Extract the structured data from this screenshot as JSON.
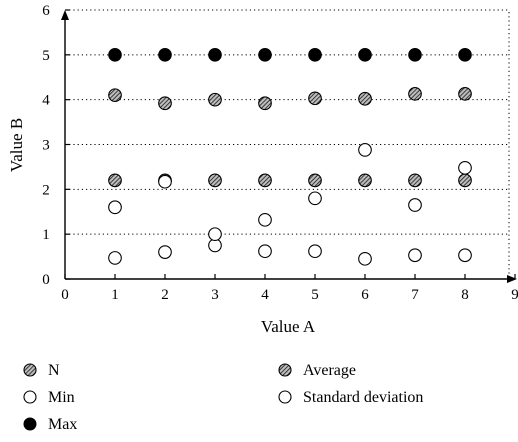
{
  "chart_data": {
    "type": "scatter",
    "xlabel": "Value A",
    "ylabel": "Value B",
    "xlim": [
      0,
      9
    ],
    "ylim": [
      0,
      6
    ],
    "xticks": [
      "0",
      "1",
      "2",
      "3",
      "4",
      "5",
      "6",
      "7",
      "8",
      "9"
    ],
    "yticks": [
      "0",
      "1",
      "2",
      "3",
      "4",
      "5",
      "6"
    ],
    "grid": "dotted horizontal",
    "legend_position": "bottom",
    "series": [
      {
        "name": "N",
        "marker": "hatched",
        "points": [
          [
            1,
            2.2
          ],
          [
            2,
            2.2
          ],
          [
            3,
            2.2
          ],
          [
            4,
            2.2
          ],
          [
            5,
            2.2
          ],
          [
            6,
            2.2
          ],
          [
            7,
            2.2
          ],
          [
            8,
            2.2
          ]
        ]
      },
      {
        "name": "Average",
        "marker": "hatched",
        "points": [
          [
            1,
            4.1
          ],
          [
            2,
            3.92
          ],
          [
            3,
            4.0
          ],
          [
            4,
            3.92
          ],
          [
            5,
            4.03
          ],
          [
            6,
            4.02
          ],
          [
            7,
            4.13
          ],
          [
            8,
            4.13
          ]
        ]
      },
      {
        "name": "Min",
        "marker": "open",
        "points": [
          [
            1,
            0.47
          ],
          [
            2,
            0.6
          ],
          [
            3,
            0.75
          ],
          [
            4,
            0.62
          ],
          [
            5,
            0.62
          ],
          [
            6,
            0.45
          ],
          [
            7,
            0.53
          ],
          [
            8,
            0.53
          ]
        ]
      },
      {
        "name": "Standard deviation",
        "marker": "open",
        "points": [
          [
            1,
            1.6
          ],
          [
            2,
            2.17
          ],
          [
            3,
            1.0
          ],
          [
            4,
            1.32
          ],
          [
            5,
            1.8
          ],
          [
            6,
            2.88
          ],
          [
            7,
            1.65
          ],
          [
            8,
            2.48
          ]
        ]
      },
      {
        "name": "Max",
        "marker": "filled",
        "points": [
          [
            1,
            5
          ],
          [
            2,
            5
          ],
          [
            3,
            5
          ],
          [
            4,
            5
          ],
          [
            5,
            5
          ],
          [
            6,
            5
          ],
          [
            7,
            5
          ],
          [
            8,
            5
          ]
        ]
      }
    ]
  }
}
